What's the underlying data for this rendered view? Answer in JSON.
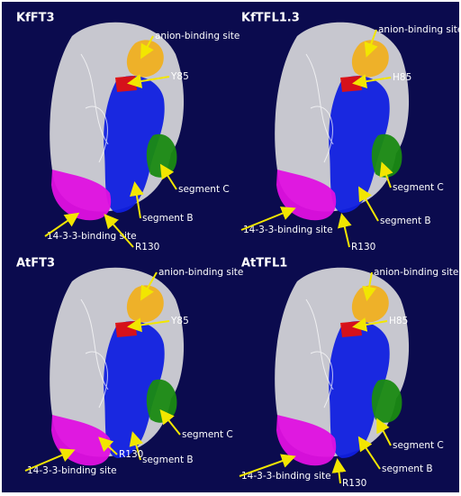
{
  "panels": [
    {
      "title": "KfFT3",
      "labels": {
        "anion": "anion-binding site",
        "residue85": "Y85",
        "segment_c": "segment C",
        "segment_b": "segment B",
        "binding_1433": "14-3-3-binding site",
        "residue130": "R130"
      }
    },
    {
      "title": "KfTFL1.3",
      "labels": {
        "anion": "anion-binding site",
        "residue85": "H85",
        "segment_c": "segment C",
        "segment_b": "segment B",
        "binding_1433": "14-3-3-binding site",
        "residue130": "R130"
      }
    },
    {
      "title": "AtFT3",
      "labels": {
        "anion": "anion-binding site",
        "residue85": "Y85",
        "segment_c": "segment C",
        "segment_b": "segment B",
        "binding_1433": "14-3-3-binding site",
        "residue130": "R130"
      }
    },
    {
      "title": "AtTFL1",
      "labels": {
        "anion": "anion-binding site",
        "residue85": "H85",
        "segment_c": "segment C",
        "segment_b": "segment B",
        "binding_1433": "14-3-3-binding site",
        "residue130": "R130"
      }
    }
  ]
}
